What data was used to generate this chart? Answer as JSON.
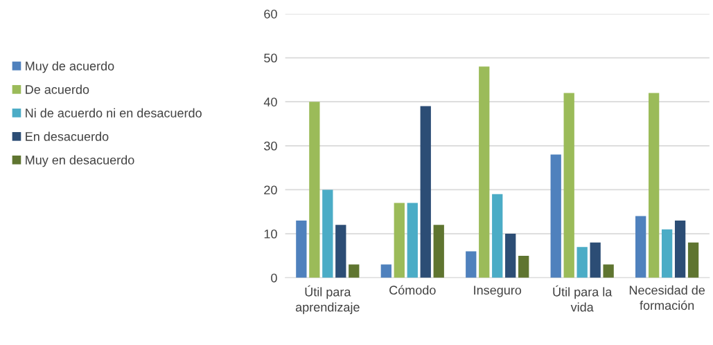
{
  "chart_data": {
    "type": "bar",
    "categories": [
      "Útil para aprendizaje",
      "Cómodo",
      "Inseguro",
      "Útil para la vida",
      "Necesidad de formación"
    ],
    "series": [
      {
        "name": "Muy de acuerdo",
        "color": "#4f81bd",
        "values": [
          13,
          3,
          6,
          28,
          14
        ]
      },
      {
        "name": "De acuerdo",
        "color": "#9bbb59",
        "values": [
          40,
          17,
          48,
          42,
          42
        ]
      },
      {
        "name": "Ni de acuerdo ni en desacuerdo",
        "color": "#4bacc6",
        "values": [
          20,
          17,
          19,
          7,
          11
        ]
      },
      {
        "name": "En desacuerdo",
        "color": "#2c4d75",
        "values": [
          12,
          39,
          10,
          8,
          13
        ]
      },
      {
        "name": "Muy en desacuerdo",
        "color": "#5f7530",
        "values": [
          3,
          12,
          5,
          3,
          8
        ]
      }
    ],
    "ylim": [
      0,
      60
    ],
    "yticks": [
      0,
      10,
      20,
      30,
      40,
      50,
      60
    ],
    "grid": "y",
    "legend": "left"
  }
}
